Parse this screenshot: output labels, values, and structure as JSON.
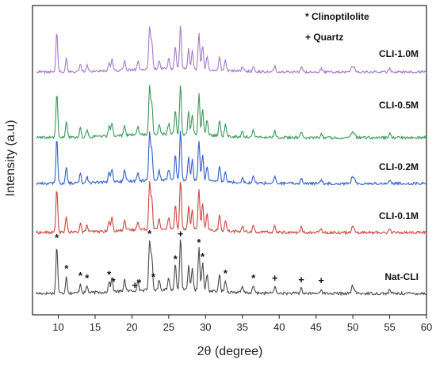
{
  "chart_data": {
    "type": "line",
    "title": "",
    "xlabel": "2θ (degree)",
    "ylabel": "Intensity (a.u)",
    "xlim": [
      6.5,
      60
    ],
    "xticks": [
      10,
      15,
      20,
      25,
      30,
      35,
      40,
      45,
      50,
      55,
      60
    ],
    "y_ticks_shown": false,
    "grid": false,
    "legend": {
      "position": "top-right",
      "entries": [
        "* Clinoptilolite",
        "+ Quartz"
      ]
    },
    "peaks": [
      {
        "pos": 9.8,
        "h": 1.0
      },
      {
        "pos": 11.1,
        "h": 0.35
      },
      {
        "pos": 13.0,
        "h": 0.2
      },
      {
        "pos": 13.9,
        "h": 0.15
      },
      {
        "pos": 16.9,
        "h": 0.22
      },
      {
        "pos": 17.3,
        "h": 0.3
      },
      {
        "pos": 19.0,
        "h": 0.25
      },
      {
        "pos": 20.8,
        "h": 0.2
      },
      {
        "pos": 22.4,
        "h": 1.05
      },
      {
        "pos": 22.7,
        "h": 0.7
      },
      {
        "pos": 23.7,
        "h": 0.22
      },
      {
        "pos": 25.0,
        "h": 0.25
      },
      {
        "pos": 25.9,
        "h": 0.55
      },
      {
        "pos": 26.6,
        "h": 1.1
      },
      {
        "pos": 27.7,
        "h": 0.5
      },
      {
        "pos": 28.2,
        "h": 0.45
      },
      {
        "pos": 29.1,
        "h": 0.9
      },
      {
        "pos": 29.6,
        "h": 0.6
      },
      {
        "pos": 30.2,
        "h": 0.35
      },
      {
        "pos": 31.9,
        "h": 0.35
      },
      {
        "pos": 32.7,
        "h": 0.25
      },
      {
        "pos": 35.0,
        "h": 0.12
      },
      {
        "pos": 36.5,
        "h": 0.15
      },
      {
        "pos": 39.4,
        "h": 0.15
      },
      {
        "pos": 43.0,
        "h": 0.12
      },
      {
        "pos": 45.7,
        "h": 0.1
      },
      {
        "pos": 49.9,
        "h": 0.14
      },
      {
        "pos": 50.2,
        "h": 0.1
      },
      {
        "pos": 55.0,
        "h": 0.08
      }
    ],
    "series": [
      {
        "name": "Nat-CLI",
        "color": "#4a4a4a",
        "baseline_offset": 0,
        "scale": 1.0
      },
      {
        "name": "CLI-0.1M",
        "color": "#d0453e",
        "baseline_offset": 1,
        "scale": 0.95
      },
      {
        "name": "CLI-0.2M",
        "color": "#2f5fd0",
        "baseline_offset": 2,
        "scale": 0.95
      },
      {
        "name": "CLI-0.5M",
        "color": "#3a9a5c",
        "baseline_offset": 3,
        "scale": 0.95
      },
      {
        "name": "CLI-1.0M",
        "color": "#a27ad0",
        "baseline_offset": 4,
        "scale": 0.85
      }
    ],
    "peak_markers": [
      {
        "x": 9.8,
        "symbol": "*"
      },
      {
        "x": 11.1,
        "symbol": "*"
      },
      {
        "x": 13.0,
        "symbol": "*"
      },
      {
        "x": 13.9,
        "symbol": "*"
      },
      {
        "x": 16.9,
        "symbol": "*"
      },
      {
        "x": 17.5,
        "symbol": "*"
      },
      {
        "x": 20.4,
        "symbol": "+"
      },
      {
        "x": 21.0,
        "symbol": "*"
      },
      {
        "x": 22.4,
        "symbol": "*"
      },
      {
        "x": 22.9,
        "symbol": "*"
      },
      {
        "x": 25.9,
        "symbol": "*"
      },
      {
        "x": 26.6,
        "symbol": "+"
      },
      {
        "x": 29.1,
        "symbol": "*"
      },
      {
        "x": 29.6,
        "symbol": "*"
      },
      {
        "x": 32.7,
        "symbol": "*"
      },
      {
        "x": 36.5,
        "symbol": "*"
      },
      {
        "x": 39.4,
        "symbol": "+"
      },
      {
        "x": 43.0,
        "symbol": "+"
      },
      {
        "x": 45.7,
        "symbol": "+"
      }
    ]
  }
}
